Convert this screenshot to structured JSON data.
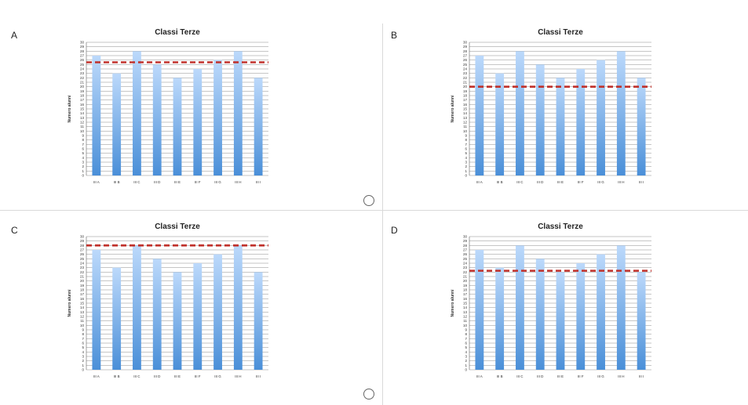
{
  "options": [
    {
      "letter": "A",
      "has_radio": true
    },
    {
      "letter": "B",
      "has_radio": false
    },
    {
      "letter": "C",
      "has_radio": true
    },
    {
      "letter": "D",
      "has_radio": false
    }
  ],
  "chart_data": [
    {
      "type": "bar",
      "title": "Classi Terze",
      "ylabel": "Numero alunni",
      "xlabel": "",
      "categories": [
        "III A",
        "III B",
        "III C",
        "III D",
        "III E",
        "III F",
        "III G",
        "III H",
        "III I"
      ],
      "values": [
        27,
        23,
        28,
        25,
        22,
        24,
        26,
        28,
        22
      ],
      "reference_line": 25.5,
      "ylim": [
        0,
        30
      ],
      "grid": true,
      "colors": {
        "bar_top": "#bcd9fb",
        "bar_bottom": "#4a8fd8",
        "reference": "#c0312b"
      }
    },
    {
      "type": "bar",
      "title": "Classi Terze",
      "ylabel": "Numero alunni",
      "xlabel": "",
      "categories": [
        "III A",
        "III B",
        "III C",
        "III D",
        "III E",
        "III F",
        "III G",
        "III H",
        "III I"
      ],
      "values": [
        27,
        23,
        28,
        25,
        22,
        24,
        26,
        28,
        22
      ],
      "reference_line": 20,
      "ylim": [
        0,
        30
      ],
      "grid": true,
      "colors": {
        "bar_top": "#bcd9fb",
        "bar_bottom": "#4a8fd8",
        "reference": "#c0312b"
      }
    },
    {
      "type": "bar",
      "title": "Classi Terze",
      "ylabel": "Numero alunni",
      "xlabel": "",
      "categories": [
        "III A",
        "III B",
        "III C",
        "III D",
        "III E",
        "III F",
        "III G",
        "III H",
        "III I"
      ],
      "values": [
        27,
        23,
        28,
        25,
        22,
        24,
        26,
        28,
        22
      ],
      "reference_line": 28,
      "ylim": [
        0,
        30
      ],
      "grid": true,
      "colors": {
        "bar_top": "#bcd9fb",
        "bar_bottom": "#4a8fd8",
        "reference": "#c0312b"
      }
    },
    {
      "type": "bar",
      "title": "Classi Terze",
      "ylabel": "Numero alunni",
      "xlabel": "",
      "categories": [
        "III A",
        "III B",
        "III C",
        "III D",
        "III E",
        "III F",
        "III G",
        "III H",
        "III I"
      ],
      "values": [
        27,
        23,
        28,
        25,
        22,
        24,
        26,
        28,
        22
      ],
      "reference_line": 22.3,
      "ylim": [
        0,
        30
      ],
      "grid": true,
      "colors": {
        "bar_top": "#bcd9fb",
        "bar_bottom": "#4a8fd8",
        "reference": "#c0312b"
      }
    }
  ]
}
